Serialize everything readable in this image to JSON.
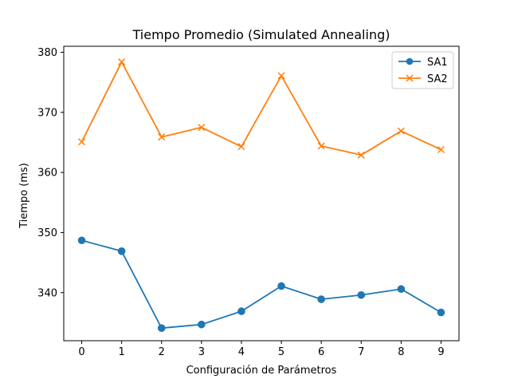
{
  "chart_data": {
    "type": "line",
    "title": "Tiempo Promedio (Simulated Annealing)",
    "xlabel": "Configuración de Parámetros",
    "ylabel": "Tiempo (ms)",
    "x": [
      0,
      1,
      2,
      3,
      4,
      5,
      6,
      7,
      8,
      9
    ],
    "xlim": [
      -0.45,
      9.45
    ],
    "ylim": [
      332,
      381
    ],
    "xticks": [
      "0",
      "1",
      "2",
      "3",
      "4",
      "5",
      "6",
      "7",
      "8",
      "9"
    ],
    "yticks": [
      340,
      350,
      360,
      370,
      380
    ],
    "grid": false,
    "legend_position": "upper right",
    "series": [
      {
        "name": "SA1",
        "color": "#1f77b4",
        "marker": "circle",
        "values": [
          348.7,
          346.9,
          334.1,
          334.7,
          336.9,
          341.1,
          338.9,
          339.6,
          340.6,
          336.7
        ]
      },
      {
        "name": "SA2",
        "color": "#ff7f0e",
        "marker": "x",
        "values": [
          365.1,
          378.4,
          365.9,
          367.5,
          364.3,
          376.1,
          364.4,
          362.9,
          366.9,
          363.8
        ]
      }
    ]
  }
}
